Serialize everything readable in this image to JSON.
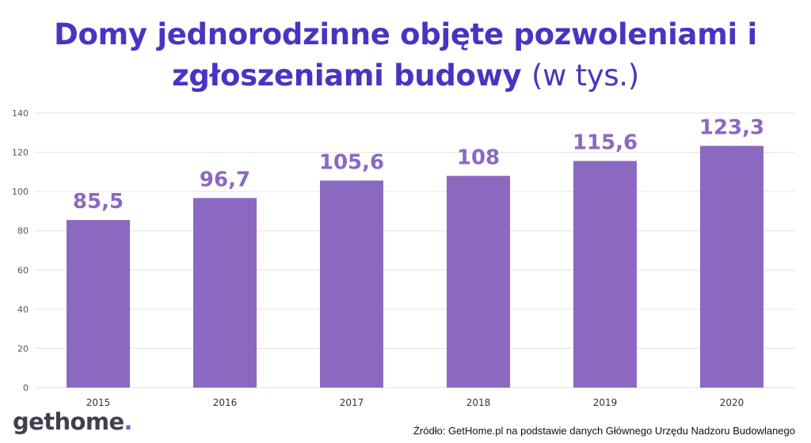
{
  "title_main": "Domy jednorodzinne objęte pozwoleniami i zgłoszeniami budowy",
  "title_unit": "(w tys.)",
  "logo": {
    "text": "gethome",
    "dot": "."
  },
  "source": "Źródło: GetHome.pl na podstawie danych Głównego Urzędu Nadzoru Budowlanego",
  "colors": {
    "bar": "#8b69c1",
    "title": "#4b33c2",
    "grid": "#e2e2e2",
    "label": "#8b69c1"
  },
  "chart_data": {
    "type": "bar",
    "categories": [
      "2015",
      "2016",
      "2017",
      "2018",
      "2019",
      "2020"
    ],
    "values": [
      85.5,
      96.7,
      105.6,
      108,
      115.6,
      123.3
    ],
    "value_labels": [
      "85,5",
      "96,7",
      "105,6",
      "108",
      "115,6",
      "123,3"
    ],
    "title": "Domy jednorodzinne objęte pozwoleniami i zgłoszeniami budowy (w tys.)",
    "xlabel": "",
    "ylabel": "",
    "ylim": [
      0,
      140
    ],
    "yticks": [
      0,
      20,
      40,
      60,
      80,
      100,
      120,
      140
    ],
    "grid": true,
    "legend": "none"
  }
}
